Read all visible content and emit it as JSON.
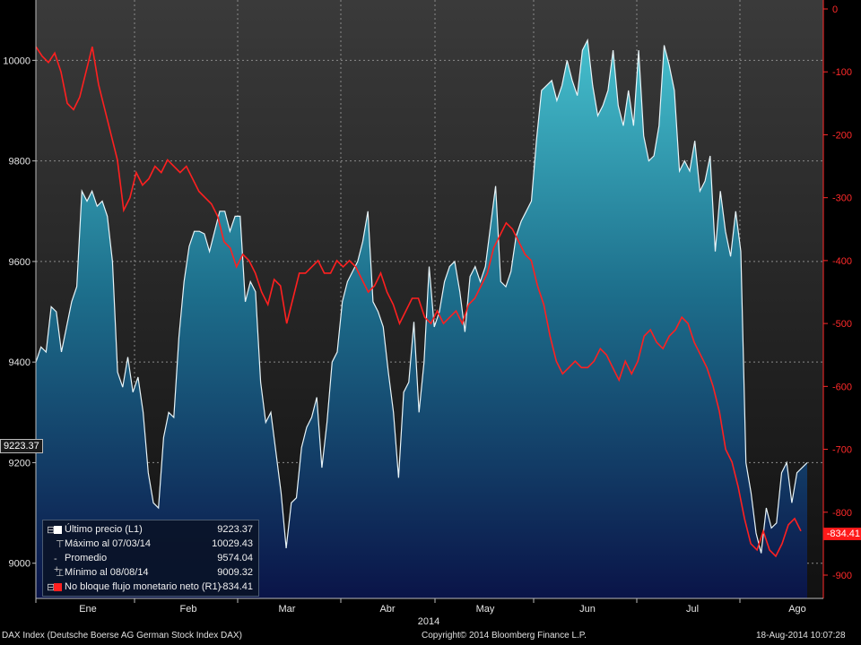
{
  "chart_data": {
    "type": "area",
    "y_left": {
      "lim": [
        8930,
        10120
      ],
      "ticks": [
        9000,
        9200,
        9400,
        9600,
        9800,
        10000
      ]
    },
    "y_right": {
      "lim": [
        -950,
        0
      ],
      "ticks": [
        0,
        -100,
        -200,
        -300,
        -400,
        -500,
        -600,
        -700,
        -800,
        -900
      ]
    },
    "x_ticks": [
      "Ene",
      "Feb",
      "Mar",
      "Abr",
      "May",
      "Jun",
      "Jul",
      "Ago"
    ],
    "x_year_label": "2014",
    "grid": true,
    "series": [
      {
        "name": "Último precio (L1)",
        "axis": "left",
        "color": "#e8f4f8",
        "values": [
          9400,
          9430,
          9420,
          9510,
          9500,
          9420,
          9470,
          9520,
          9550,
          9740,
          9720,
          9740,
          9710,
          9720,
          9690,
          9600,
          9380,
          9350,
          9410,
          9340,
          9370,
          9300,
          9180,
          9120,
          9110,
          9250,
          9300,
          9290,
          9450,
          9560,
          9630,
          9660,
          9660,
          9655,
          9620,
          9660,
          9700,
          9700,
          9660,
          9690,
          9690,
          9520,
          9560,
          9540,
          9360,
          9280,
          9300,
          9220,
          9140,
          9030,
          9120,
          9130,
          9230,
          9270,
          9290,
          9330,
          9190,
          9280,
          9400,
          9420,
          9520,
          9560,
          9580,
          9600,
          9640,
          9700,
          9520,
          9500,
          9470,
          9380,
          9300,
          9170,
          9340,
          9360,
          9480,
          9300,
          9400,
          9590,
          9470,
          9500,
          9560,
          9590,
          9600,
          9540,
          9460,
          9570,
          9590,
          9560,
          9590,
          9670,
          9750,
          9560,
          9550,
          9580,
          9650,
          9680,
          9700,
          9720,
          9840,
          9940,
          9950,
          9960,
          9920,
          9950,
          10000,
          9960,
          9930,
          10020,
          10040,
          9950,
          9890,
          9910,
          9940,
          10020,
          9910,
          9870,
          9940,
          9870,
          10020,
          9850,
          9800,
          9810,
          9870,
          10030,
          9990,
          9940,
          9780,
          9800,
          9780,
          9840,
          9740,
          9760,
          9810,
          9620,
          9740,
          9660,
          9610,
          9700,
          9620,
          9200,
          9140,
          9060,
          9020,
          9110,
          9070,
          9080,
          9180,
          9200,
          9120,
          9180,
          9190,
          9200
        ]
      },
      {
        "name": "No bloque flujo monetario neto (R1)",
        "axis": "right",
        "color": "#ff2020",
        "values": [
          -60,
          -75,
          -85,
          -70,
          -100,
          -150,
          -160,
          -140,
          -100,
          -60,
          -120,
          -160,
          -200,
          -240,
          -320,
          -300,
          -260,
          -280,
          -270,
          -250,
          -260,
          -240,
          -250,
          -260,
          -250,
          -270,
          -290,
          -300,
          -310,
          -330,
          -370,
          -380,
          -410,
          -390,
          -400,
          -420,
          -450,
          -470,
          -430,
          -440,
          -500,
          -460,
          -420,
          -420,
          -410,
          -400,
          -420,
          -420,
          -400,
          -410,
          -400,
          -410,
          -430,
          -450,
          -440,
          -420,
          -450,
          -470,
          -500,
          -480,
          -460,
          -460,
          -490,
          -500,
          -480,
          -500,
          -490,
          -480,
          -500,
          -470,
          -460,
          -440,
          -420,
          -380,
          -360,
          -340,
          -350,
          -370,
          -390,
          -400,
          -440,
          -470,
          -520,
          -560,
          -580,
          -570,
          -560,
          -570,
          -570,
          -560,
          -540,
          -550,
          -570,
          -590,
          -560,
          -580,
          -560,
          -520,
          -510,
          -530,
          -540,
          -520,
          -510,
          -490,
          -500,
          -530,
          -550,
          -570,
          -600,
          -640,
          -700,
          -720,
          -760,
          -810,
          -850,
          -860,
          -830,
          -860,
          -870,
          -850,
          -820,
          -810,
          -830
        ]
      }
    ],
    "stats": [
      {
        "label": "Último precio (L1)",
        "value": "9223.37"
      },
      {
        "label": "Máximo al 07/03/14",
        "value": "10029.43"
      },
      {
        "label": "Promedio",
        "value": "9574.04"
      },
      {
        "label": "Mínimo al 08/08/14",
        "value": "9009.32"
      },
      {
        "label": "No bloque flujo monetario neto (R1)",
        "value": "-834.41"
      }
    ],
    "last_values": {
      "left": "9223.37",
      "right": "-834.41"
    }
  },
  "footer": {
    "left": "DAX Index (Deutsche Boerse AG German Stock Index DAX)",
    "center": "Copyright© 2014 Bloomberg Finance L.P.",
    "right": "18-Aug-2014 10:07:28"
  },
  "colors": {
    "area_top": "#3aaabb",
    "area_bottom": "#0a1a50",
    "red_line": "#ff2020",
    "grid": "#8a8a8a"
  },
  "legend_symbols": [
    "square",
    "max-marker",
    "average-marker",
    "min-marker",
    "square-red"
  ]
}
